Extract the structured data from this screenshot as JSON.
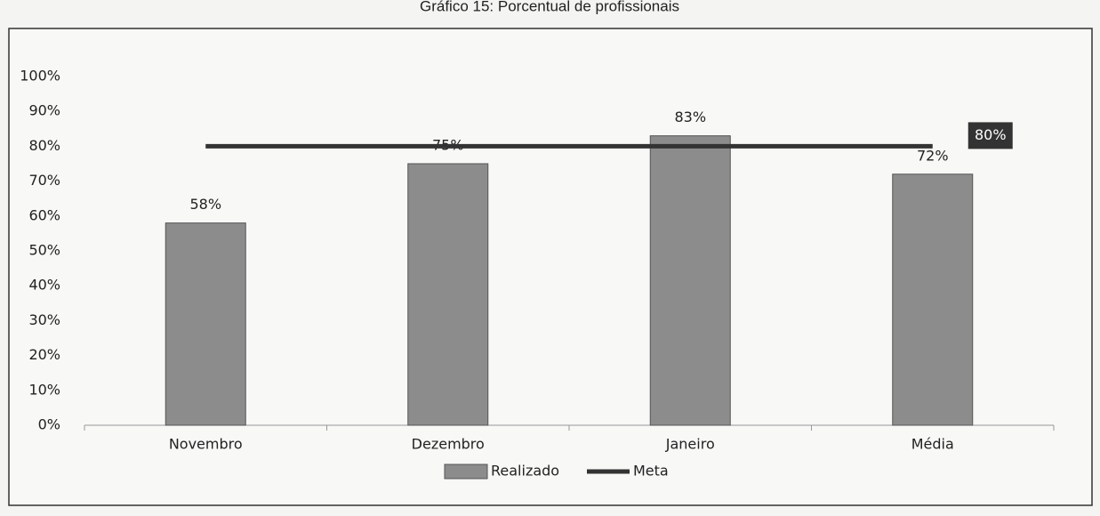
{
  "chart_data": {
    "type": "bar",
    "title": "Gráfico 15: Porcentual de profissionais",
    "categories": [
      "Novembro",
      "Dezembro",
      "Janeiro",
      "Média"
    ],
    "series": [
      {
        "name": "Realizado",
        "type": "bar",
        "color": "#8c8c8c",
        "values": [
          58,
          75,
          83,
          72
        ],
        "value_labels": [
          "58%",
          "75%",
          "83%",
          "72%"
        ]
      },
      {
        "name": "Meta",
        "type": "line",
        "color": "#333333",
        "values": [
          80,
          80,
          80,
          80
        ],
        "value_labels": [
          null,
          null,
          null,
          "80%"
        ]
      }
    ],
    "ylim": [
      0,
      100
    ],
    "yticks": [
      {
        "value": 0,
        "label": "0%"
      },
      {
        "value": 10,
        "label": "10%"
      },
      {
        "value": 20,
        "label": "20%"
      },
      {
        "value": 30,
        "label": "30%"
      },
      {
        "value": 40,
        "label": "40%"
      },
      {
        "value": 50,
        "label": "50%"
      },
      {
        "value": 60,
        "label": "60%"
      },
      {
        "value": 70,
        "label": "70%"
      },
      {
        "value": 80,
        "label": "80%"
      },
      {
        "value": 90,
        "label": "90%"
      },
      {
        "value": 100,
        "label": "100%"
      }
    ],
    "grid": false,
    "legend": "bottom"
  }
}
